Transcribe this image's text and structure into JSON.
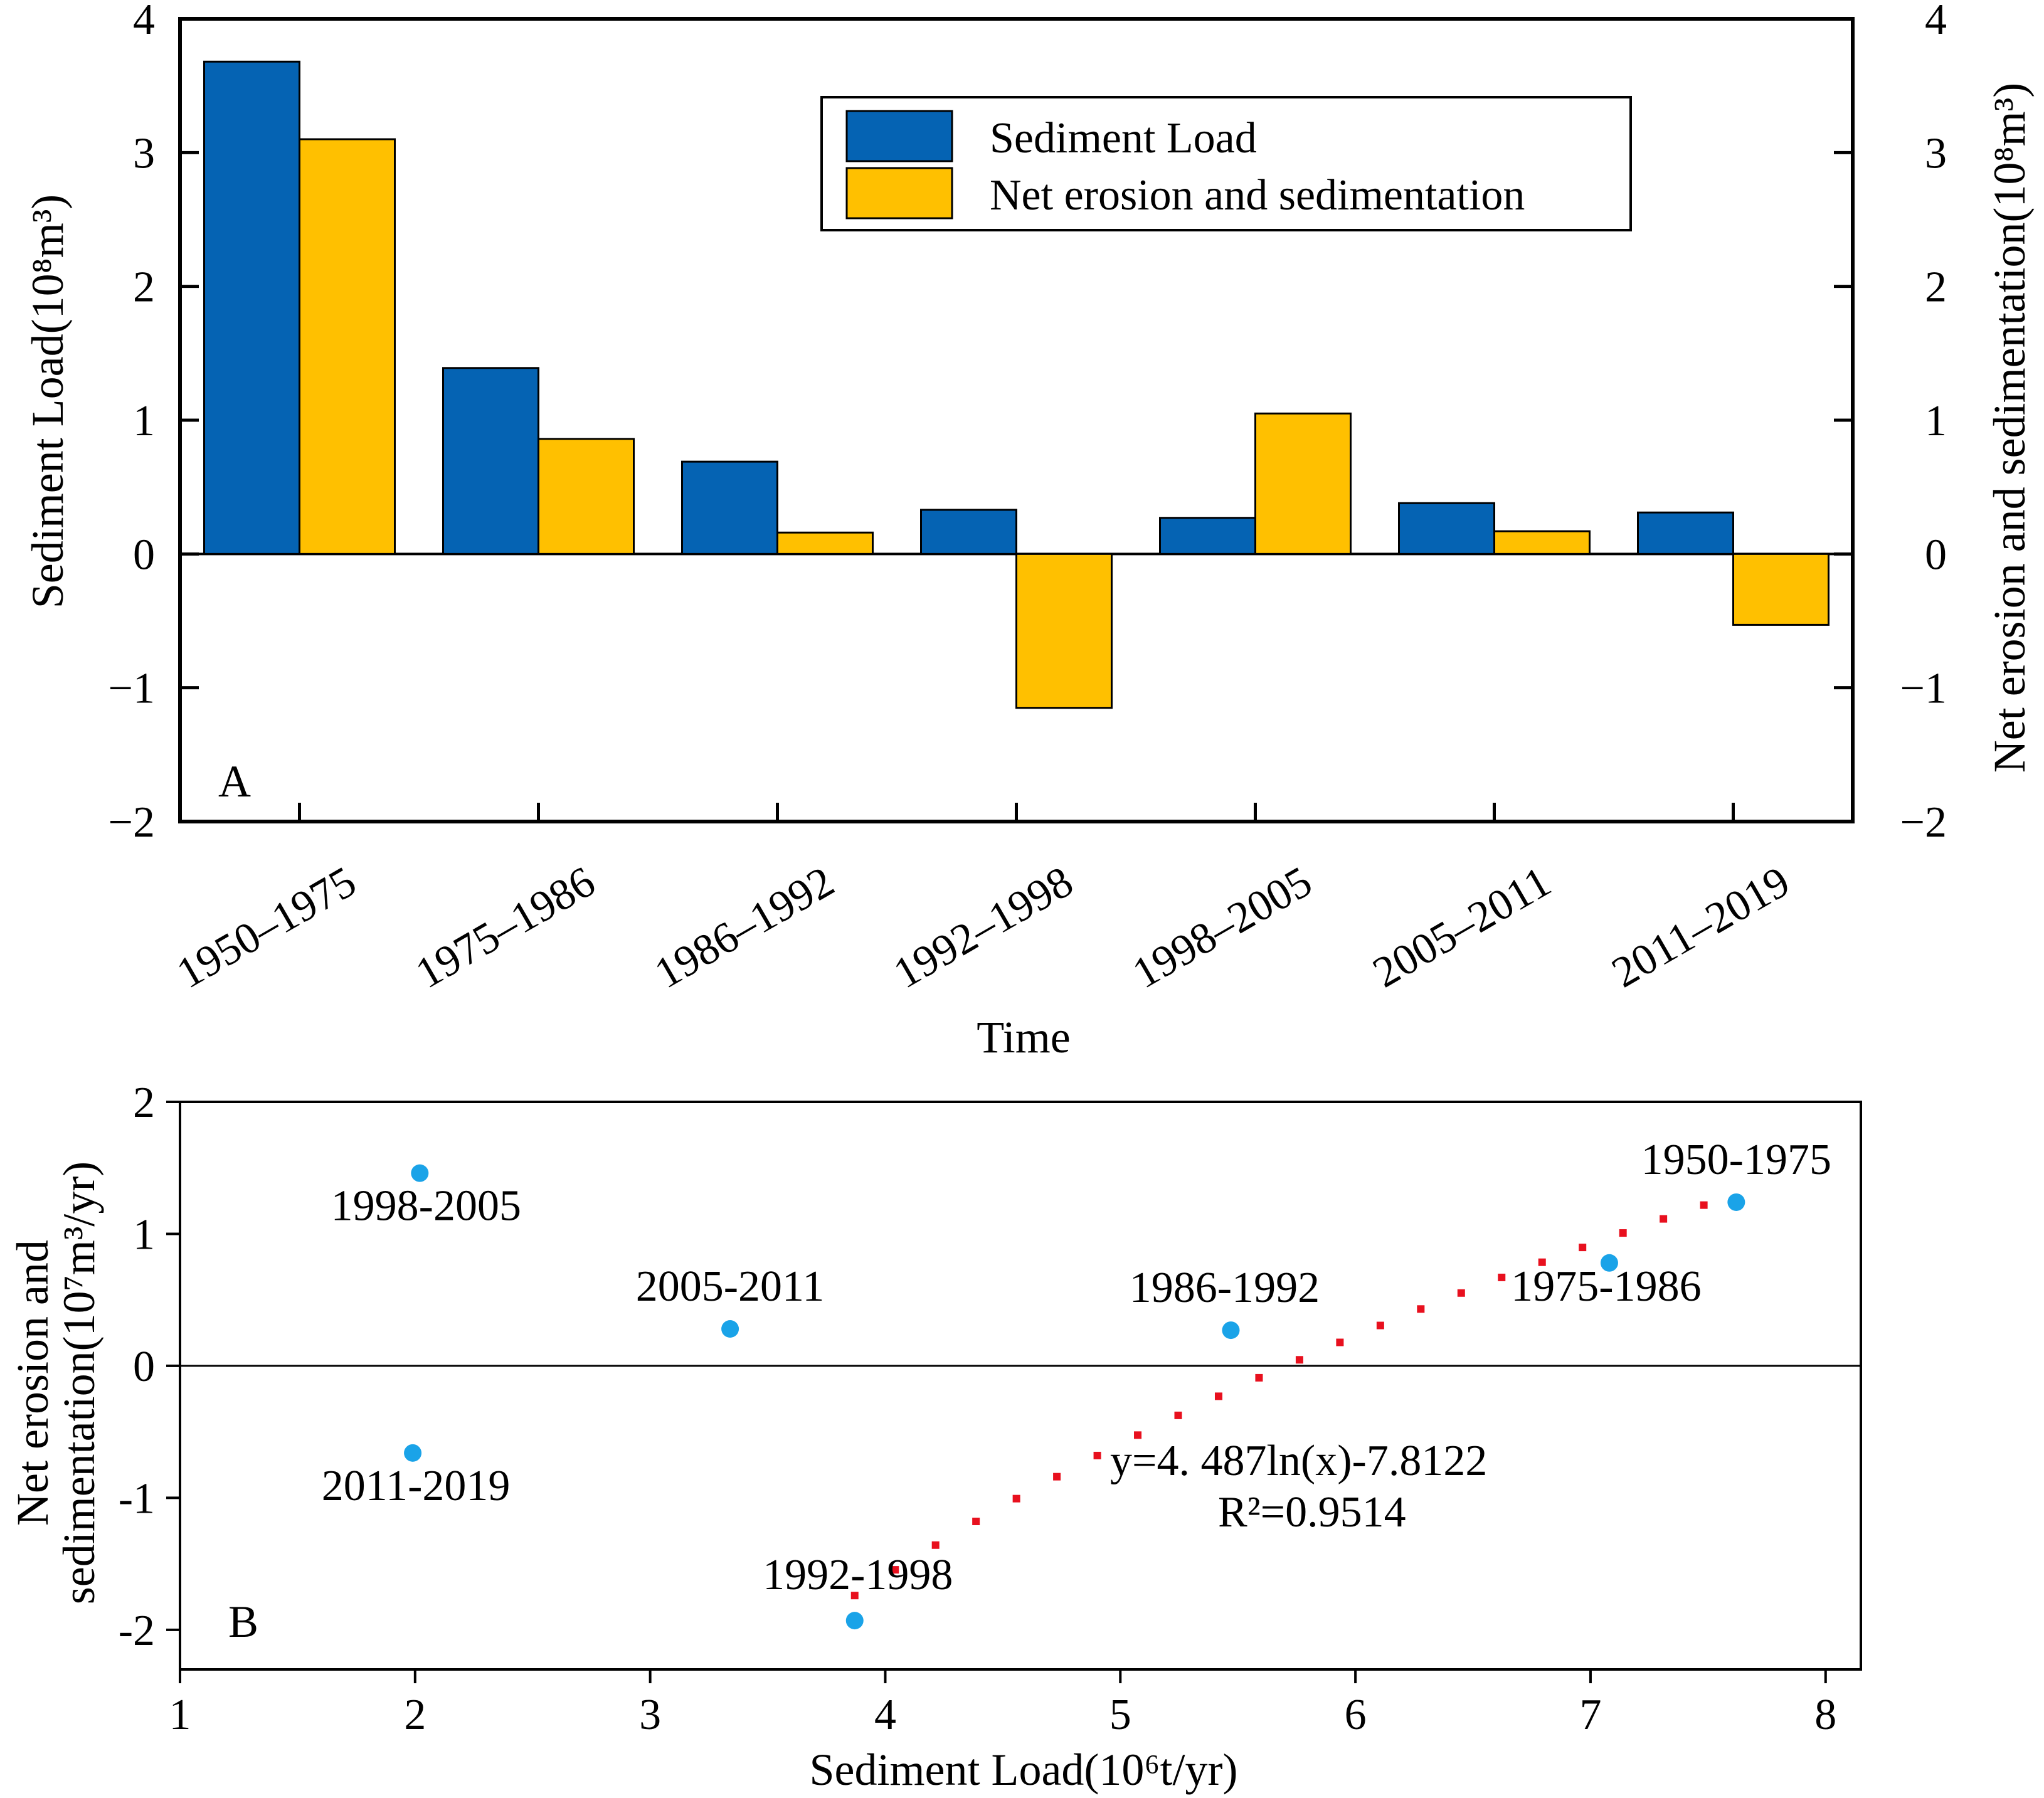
{
  "chart_data": [
    {
      "type": "bar",
      "panel_label": "A",
      "categories": [
        "1950–1975",
        "1975–1986",
        "1986–1992",
        "1992–1998",
        "1998–2005",
        "2005–2011",
        "2011–2019"
      ],
      "series": [
        {
          "name": "Sediment Load",
          "color": "#0563B3",
          "values": [
            3.68,
            1.39,
            0.69,
            0.33,
            0.27,
            0.38,
            0.31
          ]
        },
        {
          "name": "Net erosion and sedimentation",
          "color": "#FFC000",
          "values": [
            3.1,
            0.86,
            0.16,
            -1.15,
            1.05,
            0.17,
            -0.53
          ]
        }
      ],
      "xlabel": "Time",
      "ylabel": "Sediment  Load",
      "ylabel_unit": "(10⁸m³)",
      "ylabel_right": "Net erosion and sedimentation",
      "ylabel_right_unit": "(10⁸m³)",
      "ylim": [
        -2,
        4
      ],
      "yticks": [
        "−2",
        "−1",
        "0",
        "1",
        "2",
        "3",
        "4"
      ],
      "legend": "top-right"
    },
    {
      "type": "scatter",
      "panel_label": "B",
      "points": [
        {
          "label": "1950-1975",
          "x": 7.62,
          "y": 1.24
        },
        {
          "label": "1975-1986",
          "x": 7.08,
          "y": 0.78
        },
        {
          "label": "1986-1992",
          "x": 5.47,
          "y": 0.27
        },
        {
          "label": "1992-1998",
          "x": 3.87,
          "y": -1.93
        },
        {
          "label": "1998-2005",
          "x": 2.02,
          "y": 1.46
        },
        {
          "label": "2005-2011",
          "x": 3.34,
          "y": 0.28
        },
        {
          "label": "2011-2019",
          "x": 1.99,
          "y": -0.66
        }
      ],
      "point_color": "#1AA3E8",
      "trendline": {
        "a": 4.487,
        "b": -7.8122,
        "x_range": [
          3.87,
          7.62
        ],
        "color": "#E8101E"
      },
      "equation": "y=4. 487ln(x)-7.8122",
      "r2_text": "R²=0.9514",
      "xlabel": "Sediment Load(10⁶t/yr)",
      "ylabel_line1": "Net erosion and",
      "ylabel_line2": "sedimentation(10⁷m³/yr)",
      "xlim": [
        1,
        8.15
      ],
      "ylim": [
        -2.3,
        2
      ],
      "xticks": [
        "1",
        "2",
        "3",
        "4",
        "5",
        "6",
        "7",
        "8"
      ],
      "yticks": [
        "-2",
        "-1",
        "0",
        "1",
        "2"
      ]
    }
  ]
}
